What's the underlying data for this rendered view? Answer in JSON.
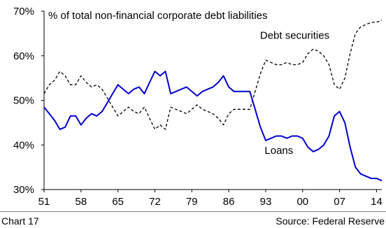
{
  "chart_data": {
    "type": "line",
    "title": "% of total non-financial corporate debt liabilities",
    "xlabel": "",
    "ylabel": "",
    "xlim": [
      1951,
      2015
    ],
    "ylim": [
      30,
      70
    ],
    "x_ticks": [
      {
        "value": 1951,
        "label": "51"
      },
      {
        "value": 1958,
        "label": "58"
      },
      {
        "value": 1965,
        "label": "65"
      },
      {
        "value": 1972,
        "label": "72"
      },
      {
        "value": 1979,
        "label": "79"
      },
      {
        "value": 1986,
        "label": "86"
      },
      {
        "value": 1993,
        "label": "93"
      },
      {
        "value": 2000,
        "label": "00"
      },
      {
        "value": 2007,
        "label": "07"
      },
      {
        "value": 2014,
        "label": "14"
      }
    ],
    "y_ticks": [
      {
        "value": 30,
        "label": "30%"
      },
      {
        "value": 40,
        "label": "40%"
      },
      {
        "value": 50,
        "label": "50%"
      },
      {
        "value": 60,
        "label": "60%"
      },
      {
        "value": 70,
        "label": "70%"
      }
    ],
    "grid": false,
    "series": [
      {
        "name": "Debt securities",
        "color": "#000000",
        "style": "dashed",
        "points": [
          [
            1951,
            51.5
          ],
          [
            1952,
            53.5
          ],
          [
            1953,
            54.5
          ],
          [
            1954,
            56.5
          ],
          [
            1955,
            55.5
          ],
          [
            1956,
            53.5
          ],
          [
            1957,
            53.5
          ],
          [
            1958,
            55.5
          ],
          [
            1959,
            54.0
          ],
          [
            1960,
            53.0
          ],
          [
            1961,
            53.5
          ],
          [
            1962,
            52.5
          ],
          [
            1963,
            50.5
          ],
          [
            1964,
            48.5
          ],
          [
            1965,
            46.5
          ],
          [
            1966,
            47.5
          ],
          [
            1967,
            48.5
          ],
          [
            1968,
            47.5
          ],
          [
            1969,
            47.0
          ],
          [
            1970,
            48.5
          ],
          [
            1971,
            46.0
          ],
          [
            1972,
            43.5
          ],
          [
            1973,
            44.5
          ],
          [
            1974,
            43.5
          ],
          [
            1975,
            48.5
          ],
          [
            1976,
            48.0
          ],
          [
            1977,
            47.5
          ],
          [
            1978,
            47.0
          ],
          [
            1979,
            48.0
          ],
          [
            1980,
            49.0
          ],
          [
            1981,
            48.0
          ],
          [
            1982,
            47.5
          ],
          [
            1983,
            47.0
          ],
          [
            1984,
            46.0
          ],
          [
            1985,
            44.5
          ],
          [
            1986,
            47.0
          ],
          [
            1987,
            48.0
          ],
          [
            1988,
            48.0
          ],
          [
            1989,
            48.0
          ],
          [
            1990,
            48.0
          ],
          [
            1991,
            52.0
          ],
          [
            1992,
            56.0
          ],
          [
            1993,
            59.0
          ],
          [
            1994,
            58.5
          ],
          [
            1995,
            58.0
          ],
          [
            1996,
            58.0
          ],
          [
            1997,
            58.5
          ],
          [
            1998,
            58.0
          ],
          [
            1999,
            58.0
          ],
          [
            2000,
            58.5
          ],
          [
            2001,
            60.5
          ],
          [
            2002,
            61.5
          ],
          [
            2003,
            61.0
          ],
          [
            2004,
            60.0
          ],
          [
            2005,
            58.0
          ],
          [
            2006,
            53.5
          ],
          [
            2007,
            52.5
          ],
          [
            2008,
            55.0
          ],
          [
            2009,
            60.5
          ],
          [
            2010,
            65.0
          ],
          [
            2011,
            66.5
          ],
          [
            2012,
            67.0
          ],
          [
            2013,
            67.5
          ],
          [
            2014,
            67.5
          ],
          [
            2015,
            68.0
          ]
        ]
      },
      {
        "name": "Loans",
        "color": "#0000cc",
        "style": "solid",
        "points": [
          [
            1951,
            48.5
          ],
          [
            1952,
            47.0
          ],
          [
            1953,
            45.5
          ],
          [
            1954,
            43.5
          ],
          [
            1955,
            44.0
          ],
          [
            1956,
            46.5
          ],
          [
            1957,
            46.5
          ],
          [
            1958,
            44.5
          ],
          [
            1959,
            46.0
          ],
          [
            1960,
            47.0
          ],
          [
            1961,
            46.5
          ],
          [
            1962,
            47.5
          ],
          [
            1963,
            49.5
          ],
          [
            1964,
            51.5
          ],
          [
            1965,
            53.5
          ],
          [
            1966,
            52.5
          ],
          [
            1967,
            51.5
          ],
          [
            1968,
            52.5
          ],
          [
            1969,
            53.0
          ],
          [
            1970,
            51.5
          ],
          [
            1971,
            54.0
          ],
          [
            1972,
            56.5
          ],
          [
            1973,
            55.5
          ],
          [
            1974,
            56.5
          ],
          [
            1975,
            51.5
          ],
          [
            1976,
            52.0
          ],
          [
            1977,
            52.5
          ],
          [
            1978,
            53.0
          ],
          [
            1979,
            52.0
          ],
          [
            1980,
            51.0
          ],
          [
            1981,
            52.0
          ],
          [
            1982,
            52.5
          ],
          [
            1983,
            53.0
          ],
          [
            1984,
            54.0
          ],
          [
            1985,
            55.5
          ],
          [
            1986,
            53.0
          ],
          [
            1987,
            52.0
          ],
          [
            1988,
            52.0
          ],
          [
            1989,
            52.0
          ],
          [
            1990,
            52.0
          ],
          [
            1991,
            48.0
          ],
          [
            1992,
            44.0
          ],
          [
            1993,
            41.0
          ],
          [
            1994,
            41.5
          ],
          [
            1995,
            42.0
          ],
          [
            1996,
            42.0
          ],
          [
            1997,
            41.5
          ],
          [
            1998,
            42.0
          ],
          [
            1999,
            42.0
          ],
          [
            2000,
            41.5
          ],
          [
            2001,
            39.5
          ],
          [
            2002,
            38.5
          ],
          [
            2003,
            39.0
          ],
          [
            2004,
            40.0
          ],
          [
            2005,
            42.0
          ],
          [
            2006,
            46.5
          ],
          [
            2007,
            47.5
          ],
          [
            2008,
            45.0
          ],
          [
            2009,
            39.5
          ],
          [
            2010,
            35.0
          ],
          [
            2011,
            33.5
          ],
          [
            2012,
            33.0
          ],
          [
            2013,
            32.5
          ],
          [
            2014,
            32.5
          ],
          [
            2015,
            32.0
          ]
        ]
      }
    ],
    "annotations": [
      {
        "text": "Debt securities",
        "x": 1998.5,
        "y": 63.8
      },
      {
        "text": "Loans",
        "x": 1995.5,
        "y": 38.0
      }
    ]
  },
  "footer": {
    "left": "Chart 17",
    "right": "Source: Federal Reserve"
  }
}
